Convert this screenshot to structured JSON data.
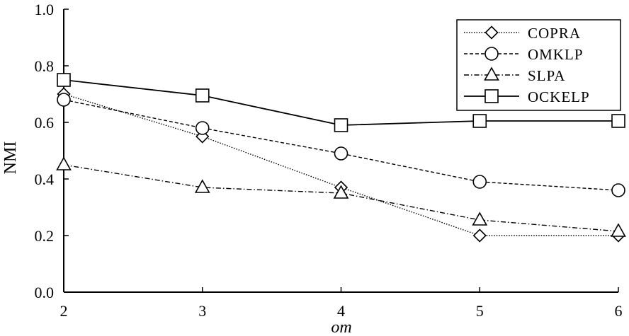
{
  "chart_data": {
    "type": "line",
    "xlabel": "om",
    "ylabel": "NMI",
    "x": [
      2,
      3,
      4,
      5,
      6
    ],
    "xlim": [
      2,
      6
    ],
    "ylim": [
      0.0,
      1.0
    ],
    "xticks": [
      "2",
      "3",
      "4",
      "5",
      "6"
    ],
    "yticks": [
      "0.0",
      "0.2",
      "0.4",
      "0.6",
      "0.8",
      "1.0"
    ],
    "grid": false,
    "legend_position": "top-right",
    "series": [
      {
        "name": "COPRA",
        "marker": "diamond",
        "line_style": "dotted",
        "values": [
          0.7,
          0.55,
          0.37,
          0.2,
          0.2
        ]
      },
      {
        "name": "OMKLP",
        "marker": "circle",
        "line_style": "dashed",
        "values": [
          0.68,
          0.58,
          0.49,
          0.39,
          0.36
        ]
      },
      {
        "name": "SLPA",
        "marker": "triangle",
        "line_style": "dash-dot",
        "values": [
          0.45,
          0.37,
          0.35,
          0.255,
          0.215
        ]
      },
      {
        "name": "OCKELP",
        "marker": "square",
        "line_style": "solid",
        "values": [
          0.75,
          0.695,
          0.59,
          0.605,
          0.605
        ]
      }
    ]
  }
}
